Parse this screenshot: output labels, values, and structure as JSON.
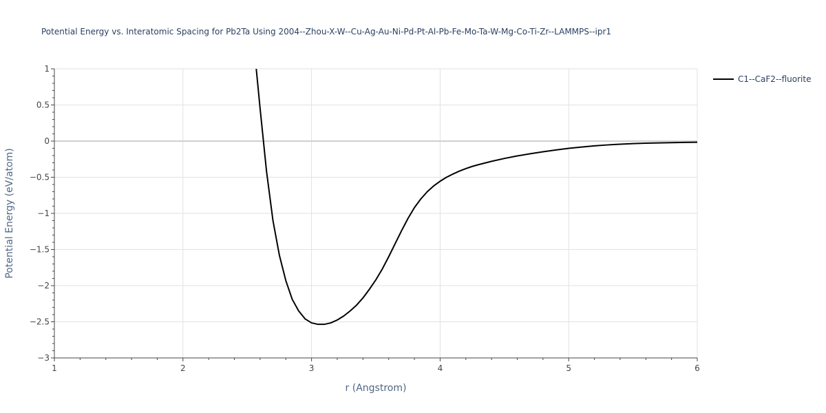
{
  "chart_data": {
    "type": "line",
    "title": "Potential Energy vs. Interatomic Spacing for Pb2Ta Using 2004--Zhou-X-W--Cu-Ag-Au-Ni-Pd-Pt-Al-Pb-Fe-Mo-Ta-W-Mg-Co-Ti-Zr--LAMMPS--ipr1",
    "xlabel": "r (Angstrom)",
    "ylabel": "Potential Energy (eV/atom)",
    "xlim": [
      1,
      6
    ],
    "ylim": [
      -3,
      1
    ],
    "xticks": [
      1,
      2,
      3,
      4,
      5,
      6
    ],
    "yticks": [
      -3,
      -2.5,
      -2,
      -1.5,
      -1,
      -0.5,
      0,
      0.5,
      1
    ],
    "xtick_labels": [
      "1",
      "2",
      "3",
      "4",
      "5",
      "6"
    ],
    "ytick_labels": [
      "−3",
      "−2.5",
      "−2",
      "−1.5",
      "−1",
      "−0.5",
      "0",
      "0.5",
      "1"
    ],
    "grid": true,
    "legend_position": "top-right",
    "series": [
      {
        "name": "C1--CaF2--fluorite",
        "color": "#000000",
        "x": [
          2.57,
          2.6,
          2.65,
          2.7,
          2.75,
          2.8,
          2.85,
          2.9,
          2.95,
          3.0,
          3.05,
          3.1,
          3.15,
          3.2,
          3.25,
          3.3,
          3.35,
          3.4,
          3.45,
          3.5,
          3.55,
          3.6,
          3.65,
          3.7,
          3.75,
          3.8,
          3.85,
          3.9,
          3.95,
          4.0,
          4.05,
          4.1,
          4.15,
          4.2,
          4.25,
          4.3,
          4.4,
          4.5,
          4.6,
          4.7,
          4.8,
          4.9,
          5.0,
          5.1,
          5.2,
          5.3,
          5.4,
          5.5,
          5.6,
          5.7,
          5.8,
          5.9,
          6.0
        ],
        "y": [
          1.0,
          0.45,
          -0.42,
          -1.1,
          -1.58,
          -1.93,
          -2.19,
          -2.35,
          -2.46,
          -2.515,
          -2.535,
          -2.535,
          -2.515,
          -2.475,
          -2.42,
          -2.35,
          -2.27,
          -2.17,
          -2.05,
          -1.92,
          -1.77,
          -1.6,
          -1.42,
          -1.24,
          -1.07,
          -0.92,
          -0.8,
          -0.7,
          -0.62,
          -0.555,
          -0.5,
          -0.455,
          -0.415,
          -0.38,
          -0.35,
          -0.325,
          -0.28,
          -0.24,
          -0.205,
          -0.175,
          -0.148,
          -0.123,
          -0.1,
          -0.082,
          -0.066,
          -0.053,
          -0.043,
          -0.035,
          -0.029,
          -0.025,
          -0.021,
          -0.018,
          -0.016
        ]
      }
    ]
  }
}
